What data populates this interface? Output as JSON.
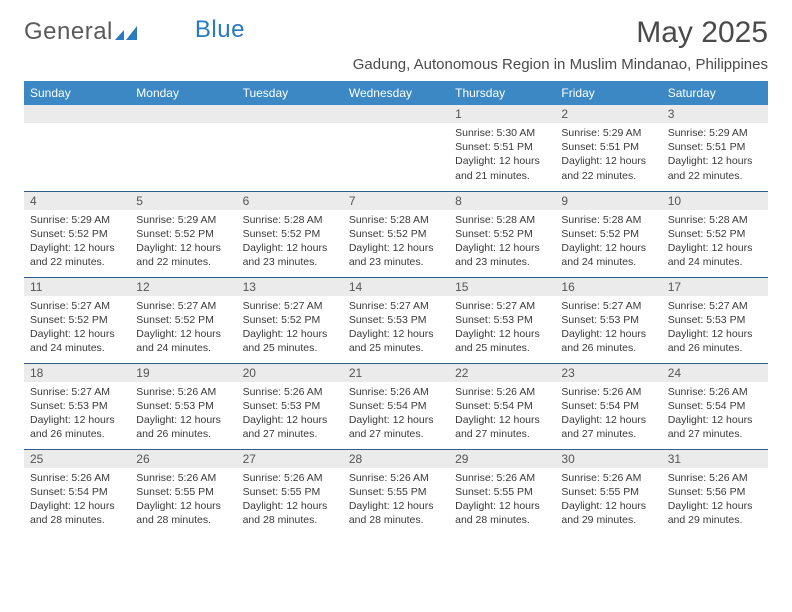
{
  "logo": {
    "text1": "General",
    "text2": "Blue"
  },
  "title": "May 2025",
  "subtitle": "Gadung, Autonomous Region in Muslim Mindanao, Philippines",
  "colors": {
    "header_bg": "#3b88c4",
    "header_text": "#ffffff",
    "row_divider": "#2e5d8a",
    "daynum_bg": "#ebebeb",
    "body_text": "#3a3a3a",
    "title_text": "#4a4a4a",
    "logo_gray": "#5a5a5a",
    "logo_blue": "#2a7abf",
    "page_bg": "#ffffff"
  },
  "typography": {
    "title_fontsize": 30,
    "subtitle_fontsize": 15,
    "dayhead_fontsize": 12,
    "body_fontsize": 10.5,
    "logo_fontsize": 24
  },
  "dayHeaders": [
    "Sunday",
    "Monday",
    "Tuesday",
    "Wednesday",
    "Thursday",
    "Friday",
    "Saturday"
  ],
  "weeks": [
    [
      null,
      null,
      null,
      null,
      {
        "n": "1",
        "sr": "5:30 AM",
        "ss": "5:51 PM",
        "dl": "12 hours and 21 minutes."
      },
      {
        "n": "2",
        "sr": "5:29 AM",
        "ss": "5:51 PM",
        "dl": "12 hours and 22 minutes."
      },
      {
        "n": "3",
        "sr": "5:29 AM",
        "ss": "5:51 PM",
        "dl": "12 hours and 22 minutes."
      }
    ],
    [
      {
        "n": "4",
        "sr": "5:29 AM",
        "ss": "5:52 PM",
        "dl": "12 hours and 22 minutes."
      },
      {
        "n": "5",
        "sr": "5:29 AM",
        "ss": "5:52 PM",
        "dl": "12 hours and 22 minutes."
      },
      {
        "n": "6",
        "sr": "5:28 AM",
        "ss": "5:52 PM",
        "dl": "12 hours and 23 minutes."
      },
      {
        "n": "7",
        "sr": "5:28 AM",
        "ss": "5:52 PM",
        "dl": "12 hours and 23 minutes."
      },
      {
        "n": "8",
        "sr": "5:28 AM",
        "ss": "5:52 PM",
        "dl": "12 hours and 23 minutes."
      },
      {
        "n": "9",
        "sr": "5:28 AM",
        "ss": "5:52 PM",
        "dl": "12 hours and 24 minutes."
      },
      {
        "n": "10",
        "sr": "5:28 AM",
        "ss": "5:52 PM",
        "dl": "12 hours and 24 minutes."
      }
    ],
    [
      {
        "n": "11",
        "sr": "5:27 AM",
        "ss": "5:52 PM",
        "dl": "12 hours and 24 minutes."
      },
      {
        "n": "12",
        "sr": "5:27 AM",
        "ss": "5:52 PM",
        "dl": "12 hours and 24 minutes."
      },
      {
        "n": "13",
        "sr": "5:27 AM",
        "ss": "5:52 PM",
        "dl": "12 hours and 25 minutes."
      },
      {
        "n": "14",
        "sr": "5:27 AM",
        "ss": "5:53 PM",
        "dl": "12 hours and 25 minutes."
      },
      {
        "n": "15",
        "sr": "5:27 AM",
        "ss": "5:53 PM",
        "dl": "12 hours and 25 minutes."
      },
      {
        "n": "16",
        "sr": "5:27 AM",
        "ss": "5:53 PM",
        "dl": "12 hours and 26 minutes."
      },
      {
        "n": "17",
        "sr": "5:27 AM",
        "ss": "5:53 PM",
        "dl": "12 hours and 26 minutes."
      }
    ],
    [
      {
        "n": "18",
        "sr": "5:27 AM",
        "ss": "5:53 PM",
        "dl": "12 hours and 26 minutes."
      },
      {
        "n": "19",
        "sr": "5:26 AM",
        "ss": "5:53 PM",
        "dl": "12 hours and 26 minutes."
      },
      {
        "n": "20",
        "sr": "5:26 AM",
        "ss": "5:53 PM",
        "dl": "12 hours and 27 minutes."
      },
      {
        "n": "21",
        "sr": "5:26 AM",
        "ss": "5:54 PM",
        "dl": "12 hours and 27 minutes."
      },
      {
        "n": "22",
        "sr": "5:26 AM",
        "ss": "5:54 PM",
        "dl": "12 hours and 27 minutes."
      },
      {
        "n": "23",
        "sr": "5:26 AM",
        "ss": "5:54 PM",
        "dl": "12 hours and 27 minutes."
      },
      {
        "n": "24",
        "sr": "5:26 AM",
        "ss": "5:54 PM",
        "dl": "12 hours and 27 minutes."
      }
    ],
    [
      {
        "n": "25",
        "sr": "5:26 AM",
        "ss": "5:54 PM",
        "dl": "12 hours and 28 minutes."
      },
      {
        "n": "26",
        "sr": "5:26 AM",
        "ss": "5:55 PM",
        "dl": "12 hours and 28 minutes."
      },
      {
        "n": "27",
        "sr": "5:26 AM",
        "ss": "5:55 PM",
        "dl": "12 hours and 28 minutes."
      },
      {
        "n": "28",
        "sr": "5:26 AM",
        "ss": "5:55 PM",
        "dl": "12 hours and 28 minutes."
      },
      {
        "n": "29",
        "sr": "5:26 AM",
        "ss": "5:55 PM",
        "dl": "12 hours and 28 minutes."
      },
      {
        "n": "30",
        "sr": "5:26 AM",
        "ss": "5:55 PM",
        "dl": "12 hours and 29 minutes."
      },
      {
        "n": "31",
        "sr": "5:26 AM",
        "ss": "5:56 PM",
        "dl": "12 hours and 29 minutes."
      }
    ]
  ],
  "labels": {
    "sunrise": "Sunrise:",
    "sunset": "Sunset:",
    "daylight": "Daylight:"
  }
}
